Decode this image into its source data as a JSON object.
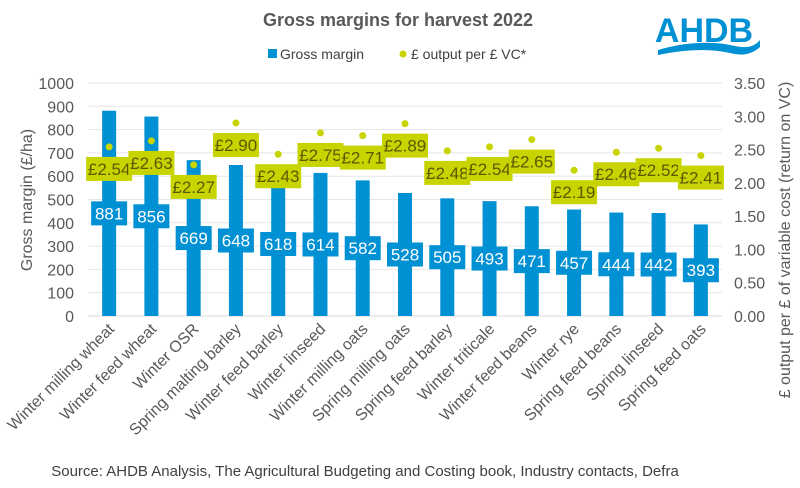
{
  "chart_data": {
    "type": "bar",
    "title": "Gross margins for harvest 2022",
    "categories": [
      "Winter milling wheat",
      "Winter feed wheat",
      "Winter OSR",
      "Spring malting barley",
      "Winter feed barley",
      "Winter linseed",
      "Winter milling oats",
      "Spring milling oats",
      "Spring feed barley",
      "Winter triticale",
      "Winter feed beans",
      "Winter rye",
      "Spring feed beans",
      "Spring linseed",
      "Spring feed oats"
    ],
    "series": [
      {
        "name": "Gross margin",
        "type": "bar",
        "axis": "left",
        "color": "#0090d4",
        "values": [
          881,
          856,
          669,
          648,
          618,
          614,
          582,
          528,
          505,
          493,
          471,
          457,
          444,
          442,
          393
        ],
        "labels": [
          "881",
          "856",
          "669",
          "648",
          "618",
          "614",
          "582",
          "528",
          "505",
          "493",
          "471",
          "457",
          "444",
          "442",
          "393"
        ]
      },
      {
        "name": "£ output per £ VC*",
        "type": "scatter",
        "axis": "right",
        "color": "#c8d400",
        "values": [
          2.54,
          2.63,
          2.27,
          2.9,
          2.43,
          2.75,
          2.71,
          2.89,
          2.48,
          2.54,
          2.65,
          2.19,
          2.46,
          2.52,
          2.41
        ],
        "labels": [
          "£2.54",
          "£2.63",
          "£2.27",
          "£2.90",
          "£2.43",
          "£2.75",
          "£2.71",
          "£2.89",
          "£2.48",
          "£2.54",
          "£2.65",
          "£2.19",
          "£2.46",
          "£2.52",
          "£2.41"
        ]
      }
    ],
    "ylabel": "Gross margin (£/ha)",
    "ylim": [
      0,
      1000
    ],
    "yticks": [
      "0",
      "100",
      "200",
      "300",
      "400",
      "500",
      "600",
      "700",
      "800",
      "900",
      "1000"
    ],
    "y2label": "£ output per £ of variable cost (return on VC)",
    "y2lim": [
      0,
      3.5
    ],
    "y2ticks": [
      "0.00",
      "0.50",
      "1.00",
      "1.50",
      "2.00",
      "2.50",
      "3.00",
      "3.50"
    ],
    "legend": [
      "Gross margin",
      "£ output per £ VC*"
    ],
    "legend_position": "top",
    "grid": true
  },
  "source": "Source: AHDB Analysis, The Agricultural Budgeting and Costing book, Industry contacts, Defra",
  "logo": "AHDB"
}
